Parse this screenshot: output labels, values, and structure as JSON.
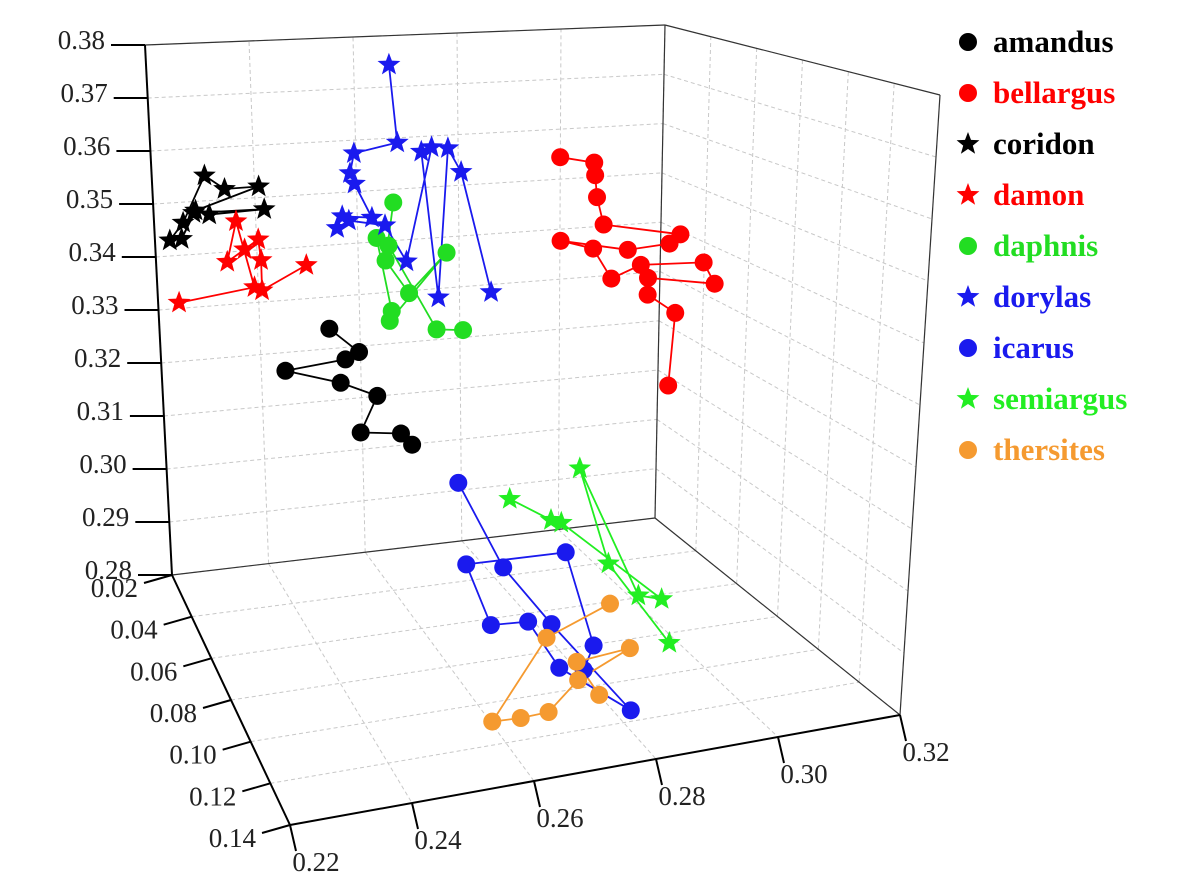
{
  "chart_data": {
    "type": "scatter3d",
    "xlim": [
      0.22,
      0.32
    ],
    "ylim": [
      0.02,
      0.14
    ],
    "zlim": [
      0.28,
      0.38
    ],
    "xticks": [
      0.22,
      0.24,
      0.26,
      0.28,
      {
        "value": 0.3,
        "label": "0.30"
      },
      0.32
    ],
    "yticks": [
      0.02,
      0.04,
      0.06,
      0.08,
      {
        "value": 0.1,
        "label": "0.10"
      },
      0.12,
      0.14
    ],
    "zticks": [
      0.28,
      0.29,
      {
        "value": 0.3,
        "label": "0.30"
      },
      0.31,
      0.32,
      0.33,
      0.34,
      0.35,
      0.36,
      0.37,
      0.38
    ],
    "grid": true,
    "series": [
      {
        "name": "amandus",
        "color": "#000000",
        "marker": "circle",
        "x": [
          0.2474,
          0.2529,
          0.2503,
          0.2389,
          0.2493,
          0.2562,
          0.2529,
          0.2606,
          0.2627
        ],
        "y": [
          0.045,
          0.045,
          0.045,
          0.045,
          0.045,
          0.045,
          0.045,
          0.045,
          0.045
        ],
        "z": [
          0.3313,
          0.3265,
          0.3254,
          0.3244,
          0.3212,
          0.3181,
          0.3117,
          0.3107,
          0.3084
        ]
      },
      {
        "name": "bellargus",
        "color": "#ff0000",
        "marker": "circle",
        "x": [
          0.2907,
          0.297,
          0.2972,
          0.2976,
          0.2989,
          0.3133,
          0.3113,
          0.3035,
          0.2909,
          0.297,
          0.3005,
          0.306,
          0.3178,
          0.32,
          0.3074,
          0.3074,
          0.3127,
          0.3117
        ],
        "y": [
          0.045,
          0.045,
          0.045,
          0.045,
          0.045,
          0.045,
          0.045,
          0.045,
          0.045,
          0.045,
          0.045,
          0.045,
          0.045,
          0.045,
          0.045,
          0.045,
          0.045,
          0.045
        ],
        "z": [
          0.3596,
          0.3581,
          0.3557,
          0.3515,
          0.3462,
          0.3431,
          0.3415,
          0.341,
          0.3438,
          0.3418,
          0.3358,
          0.3379,
          0.3373,
          0.333,
          0.3353,
          0.3321,
          0.3281,
          0.3143
        ]
      },
      {
        "name": "coridon",
        "color": "#000000",
        "marker": "star",
        "x": [
          0.2182,
          0.2208,
          0.2251,
          0.2287,
          0.235,
          0.2232,
          0.2204,
          0.2228,
          0.2359,
          0.2257
        ],
        "y": [
          0.045,
          0.045,
          0.045,
          0.045,
          0.045,
          0.045,
          0.045,
          0.045,
          0.045,
          0.045
        ],
        "z": [
          0.3498,
          0.3528,
          0.361,
          0.3583,
          0.3583,
          0.3548,
          0.3499,
          0.3544,
          0.3541,
          0.3539
        ]
      },
      {
        "name": "damon",
        "color": "#ff0000",
        "marker": "star",
        "x": [
          0.2194,
          0.2336,
          0.2306,
          0.2287,
          0.232,
          0.2346,
          0.235,
          0.235,
          0.2434
        ],
        "y": [
          0.045,
          0.045,
          0.045,
          0.045,
          0.045,
          0.045,
          0.045,
          0.045,
          0.045
        ],
        "z": [
          0.3385,
          0.3401,
          0.3523,
          0.3451,
          0.3471,
          0.3487,
          0.3449,
          0.3394,
          0.3433
        ]
      },
      {
        "name": "daphnis",
        "color": "#22dd22",
        "marker": "circle",
        "x": [
          0.2598,
          0.2582,
          0.2625,
          0.2696,
          0.2588,
          0.2592,
          0.2566,
          0.2588,
          0.2676,
          0.2726
        ],
        "y": [
          0.045,
          0.045,
          0.045,
          0.045,
          0.045,
          0.045,
          0.045,
          0.045,
          0.045,
          0.045
        ],
        "z": [
          0.3535,
          0.3429,
          0.3365,
          0.3434,
          0.3317,
          0.3335,
          0.3472,
          0.3456,
          0.3293,
          0.3287
        ]
      },
      {
        "name": "dorylas",
        "color": "#1a1aee",
        "marker": "star",
        "x": [
          0.2594,
          0.2607,
          0.2527,
          0.2519,
          0.2527,
          0.2558,
          0.2503,
          0.2493,
          0.2515,
          0.2582,
          0.2621,
          0.267,
          0.2651,
          0.268,
          0.27,
          0.2724,
          0.2779
        ],
        "y": [
          0.045,
          0.045,
          0.045,
          0.045,
          0.045,
          0.045,
          0.045,
          0.045,
          0.045,
          0.045,
          0.045,
          0.045,
          0.045,
          0.045,
          0.045,
          0.045,
          0.045
        ],
        "z": [
          0.379,
          0.3645,
          0.3631,
          0.3595,
          0.3575,
          0.351,
          0.3517,
          0.3496,
          0.3508,
          0.3494,
          0.3424,
          0.3632,
          0.3625,
          0.3352,
          0.3628,
          0.3582,
          0.3353
        ]
      },
      {
        "name": "icarus",
        "color": "#1a1aee",
        "marker": "circle",
        "x": [
          0.2515,
          0.2589,
          0.267,
          0.2806,
          0.2684,
          0.2631,
          0.2569,
          0.2528,
          0.2692,
          0.2741,
          0.2725
        ],
        "y": [
          0.122,
          0.122,
          0.122,
          0.122,
          0.122,
          0.122,
          0.122,
          0.122,
          0.122,
          0.122,
          0.122
        ],
        "z": [
          0.3238,
          0.3091,
          0.2987,
          0.2825,
          0.2914,
          0.2997,
          0.3001,
          0.3105,
          0.31,
          0.2941,
          0.2904
        ]
      },
      {
        "name": "semiargus",
        "color": "#22ee22",
        "marker": "star",
        "x": [
          0.2599,
          0.2667,
          0.2684,
          0.2853,
          0.2814,
          0.2713,
          0.2763,
          0.2868
        ],
        "y": [
          0.122,
          0.122,
          0.122,
          0.122,
          0.122,
          0.122,
          0.122,
          0.122
        ],
        "z": [
          0.32,
          0.3156,
          0.3149,
          0.2999,
          0.3011,
          0.3233,
          0.3071,
          0.2925
        ]
      },
      {
        "name": "thersites",
        "color": "#f59a30",
        "marker": "circle",
        "x": [
          0.2767,
          0.2662,
          0.2572,
          0.262,
          0.2667,
          0.2716,
          0.2802,
          0.2713,
          0.2752
        ],
        "y": [
          0.122,
          0.122,
          0.122,
          0.122,
          0.122,
          0.122,
          0.122,
          0.122,
          0.122
        ],
        "z": [
          0.3005,
          0.2966,
          0.2845,
          0.2843,
          0.2845,
          0.2889,
          0.2927,
          0.2919,
          0.2859
        ]
      }
    ]
  }
}
